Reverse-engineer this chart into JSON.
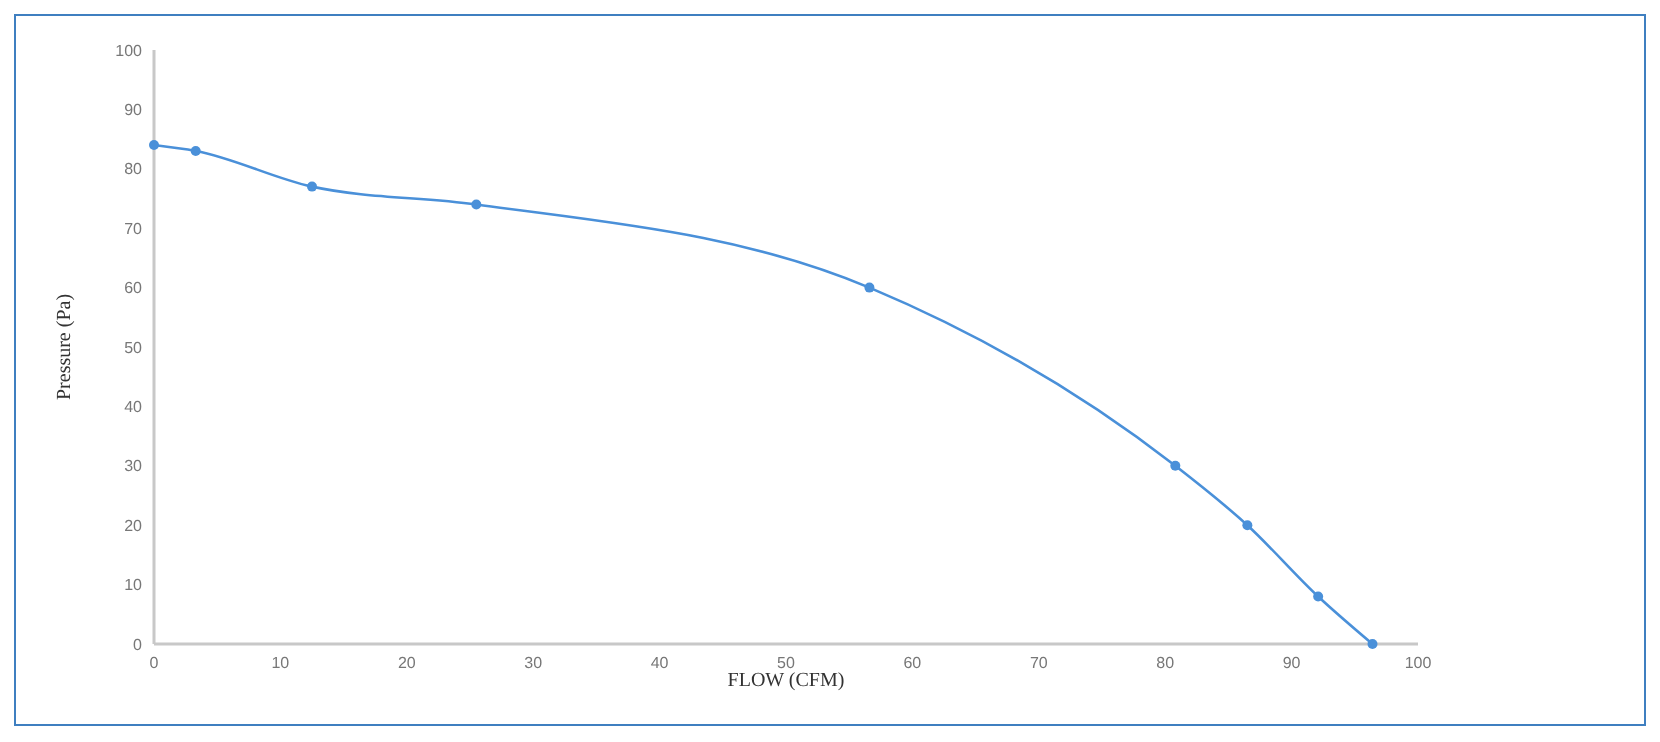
{
  "chart_data": {
    "type": "line",
    "xlabel": "FLOW (CFM)",
    "ylabel": "Pressure (Pa)",
    "x": [
      0,
      3.3,
      12.5,
      25.5,
      56.6,
      80.8,
      86.5,
      92.1,
      96.4
    ],
    "series": [
      {
        "color": "#4a90d9",
        "values": [
          84,
          83,
          77,
          74,
          60,
          30,
          20,
          8,
          0
        ]
      }
    ],
    "xlim": [
      0,
      100
    ],
    "xticks": [
      0,
      10,
      20,
      30,
      40,
      50,
      60,
      70,
      80,
      90,
      100
    ],
    "ylim": [
      0,
      100
    ],
    "yticks": [
      0,
      10,
      20,
      30,
      40,
      50,
      60,
      70,
      80,
      90,
      100
    ],
    "marker": "circle",
    "line_style": "solid"
  }
}
